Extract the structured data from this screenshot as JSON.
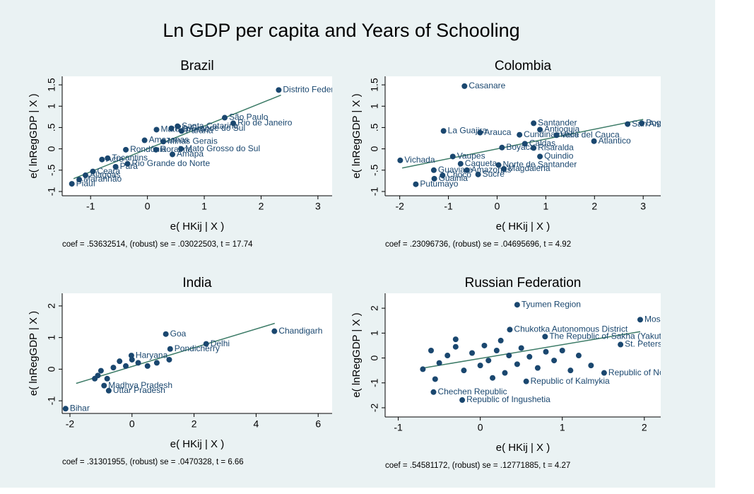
{
  "title": "Ln GDP per capita and Years of Schooling",
  "chart_data": [
    {
      "type": "scatter",
      "title": "Brazil",
      "x_label": "e( HKij | X )",
      "y_label": "e( lnRegGDP | X )",
      "note": "coef = .53632514, (robust) se = .03022503, t = 17.74",
      "color": "#1a476f",
      "xlim": [
        -1.5,
        3.25
      ],
      "ylim": [
        -1.1,
        1.7
      ],
      "xticks": [
        -1,
        0,
        1,
        2,
        3
      ],
      "yticks": [
        -1,
        {
          "value": -0.5,
          "label": "-.5"
        },
        0,
        {
          "value": 0.5,
          "label": ".5"
        },
        1,
        1.5
      ],
      "x": [
        2.31,
        1.36,
        1.51,
        0.53,
        0.6,
        0.42,
        0.16,
        0.28,
        0.59,
        -0.05,
        -0.38,
        0.15,
        0.44,
        -0.7,
        -0.8,
        -0.35,
        -0.56,
        -0.96,
        -1.09,
        -1.33,
        -1.2
      ],
      "values": [
        1.38,
        0.73,
        0.6,
        0.53,
        0.42,
        0.48,
        0.45,
        0.17,
        0,
        0.2,
        -0.02,
        -0.02,
        -0.13,
        -0.22,
        -0.25,
        -0.35,
        -0.42,
        -0.53,
        -0.62,
        -0.82,
        -0.72
      ],
      "point_labels": [
        "Distrito Federal",
        "São Paulo",
        "Rio de Janeiro",
        "Santa Catarina",
        "Paraná",
        "Rio Grande do Sul",
        "Mato Grosso",
        "Minas Gerais",
        "Mato Grosso do Sul",
        "Amazonas",
        "Rondônia",
        "Roraima",
        "Amapá",
        "Tocantins",
        "Acre",
        "Rio Grande do Norte",
        "Pará",
        "Ceará",
        "Alagoas",
        "Piauí",
        "Maranhão"
      ],
      "fit": {
        "x": [
          -1.3,
          2.35
        ],
        "values": [
          -0.7,
          1.26
        ],
        "color": "#3c7b67"
      }
    },
    {
      "type": "scatter",
      "title": "Colombia",
      "x_label": "e( HKij | X )",
      "y_label": "e( lnRegGDP | X )",
      "note": "coef = .23096736, (robust) se = .04695696, t = 4.92",
      "color": "#1a476f",
      "xlim": [
        -2.3,
        3.36
      ],
      "ylim": [
        -1.1,
        1.7
      ],
      "xticks": [
        -2,
        -1,
        0,
        1,
        2,
        3
      ],
      "yticks": [
        -1,
        {
          "value": -0.5,
          "label": "-.5"
        },
        0,
        {
          "value": 0.5,
          "label": ".5"
        },
        1,
        1.5
      ],
      "x": [
        -0.67,
        2.97,
        2.68,
        0.75,
        0.88,
        1.22,
        1.99,
        -1.1,
        -0.35,
        0.46,
        0.75,
        0.1,
        0.57,
        0.88,
        -1.99,
        -0.91,
        -0.75,
        0.03,
        0.14,
        -1.3,
        -0.62,
        -1.12,
        -0.39,
        -1.29,
        -1.67
      ],
      "values": [
        1.47,
        0.6,
        0.58,
        0.6,
        0.45,
        0.32,
        0.18,
        0.42,
        0.38,
        0.33,
        0.02,
        0.03,
        0.12,
        -0.18,
        -0.27,
        -0.18,
        -0.35,
        -0.38,
        -0.47,
        -0.5,
        -0.5,
        -0.62,
        -0.6,
        -0.7,
        -0.83
      ],
      "point_labels": [
        "Casanare",
        "Bogota",
        "San Andres y Providencia",
        "Santander",
        "Antioquia",
        "Valle del Cauca",
        "Atlantico",
        "La Guajira",
        "Arauca",
        "Cundinamarca",
        "Risaralda",
        "Boyaca",
        "Caldas",
        "Quindio",
        "Vichada",
        "Vaupes",
        "Caqueta",
        "Norte de Santander",
        "Magdalena",
        "Guaviare",
        "Amazonas",
        "Choco",
        "Sucre",
        "Guainia",
        "Putumayo"
      ],
      "fit": {
        "x": [
          -1.95,
          3
        ],
        "values": [
          -0.45,
          0.69
        ],
        "color": "#3c7b67"
      }
    },
    {
      "type": "scatter",
      "title": "India",
      "x_label": "e( HKij | X )",
      "y_label": "e( lnRegGDP | X )",
      "note": "coef = .31301955, (robust) se = .0470328, t = 6.66",
      "color": "#1a476f",
      "xlim": [
        -2.25,
        6.45
      ],
      "ylim": [
        -1.4,
        2.4
      ],
      "xticks": [
        -2,
        0,
        2,
        4,
        6
      ],
      "yticks": [
        -1,
        0,
        1,
        2
      ],
      "x": [
        4.59,
        1.09,
        2.39,
        1.23,
        -0.02,
        -2.14,
        -0.75,
        -0.9,
        -1.2,
        -1.1,
        -1,
        -0.8,
        -0.6,
        -0.4,
        -0.2,
        0,
        0.2,
        0.5,
        0.8,
        1.2
      ],
      "values": [
        1.2,
        1.11,
        0.8,
        0.64,
        0.43,
        -1.25,
        -0.68,
        -0.52,
        -0.3,
        -0.2,
        -0.05,
        -0.3,
        0.05,
        0.25,
        0.1,
        0.3,
        0.2,
        0.1,
        0.2,
        0.3
      ],
      "point_labels": [
        "Chandigarh",
        "Goa",
        "Delhi",
        "Pondicherry",
        "Haryana",
        "Bihar",
        "Uttar Pradesh",
        "Madhya Pradesh",
        null,
        null,
        null,
        null,
        null,
        null,
        null,
        null,
        null,
        null,
        null,
        null
      ],
      "fit": {
        "x": [
          -1.8,
          4.6
        ],
        "values": [
          -0.45,
          1.45
        ],
        "color": "#3c7b67"
      }
    },
    {
      "type": "scatter",
      "title": "Russian Federation",
      "x_label": "e( HKij | X )",
      "y_label": "e( lnRegGDP | X )",
      "note": "coef = .54581172, (robust) se = .12771885, t = 4.27",
      "color": "#1a476f",
      "xlim": [
        -1.16,
        2.2
      ],
      "ylim": [
        -2.37,
        2.6
      ],
      "xticks": [
        -1,
        0,
        1,
        2
      ],
      "yticks": [
        -2,
        -1,
        0,
        1,
        2
      ],
      "x": [
        0.45,
        1.95,
        0.36,
        0.79,
        1.71,
        1.51,
        0.56,
        -0.57,
        -0.22,
        -0.7,
        -0.6,
        -0.5,
        -0.4,
        -0.3,
        -0.2,
        -0.1,
        0,
        0.05,
        0.1,
        0.2,
        0.3,
        0.35,
        0.45,
        0.5,
        0.6,
        0.7,
        0.8,
        0.9,
        1,
        1.1,
        1.2,
        1.35,
        -0.55,
        0.15,
        0.25,
        -0.3
      ],
      "values": [
        2.14,
        1.54,
        1.14,
        0.86,
        0.54,
        -0.6,
        -0.94,
        -1.37,
        -1.69,
        -0.45,
        0.3,
        -0.2,
        0.1,
        0.45,
        -0.5,
        0.2,
        -0.3,
        0.5,
        -0.1,
        0.3,
        -0.6,
        0.1,
        -0.25,
        0.4,
        0.05,
        -0.4,
        0.25,
        -0.1,
        0.3,
        -0.5,
        0.1,
        -0.3,
        -0.85,
        -0.8,
        0.7,
        0.75
      ],
      "point_labels": [
        "Tyumen Region",
        "Moscow",
        "Chukotka Autonomous District",
        "The Republic of Sakha (Yakutia)",
        "St. Petersburg",
        "Republic of North Ossetia - Alania",
        "Republic of Kalmykia",
        "Chechen Republic",
        "Republic of Ingushetia",
        null,
        null,
        null,
        null,
        null,
        null,
        null,
        null,
        null,
        null,
        null,
        null,
        null,
        null,
        null,
        null,
        null,
        null,
        null,
        null,
        null,
        null,
        null,
        null,
        null,
        null,
        null
      ],
      "fit": {
        "x": [
          -0.69,
          1.95
        ],
        "values": [
          -0.4,
          1.06
        ],
        "color": "#3c7b67"
      }
    }
  ]
}
